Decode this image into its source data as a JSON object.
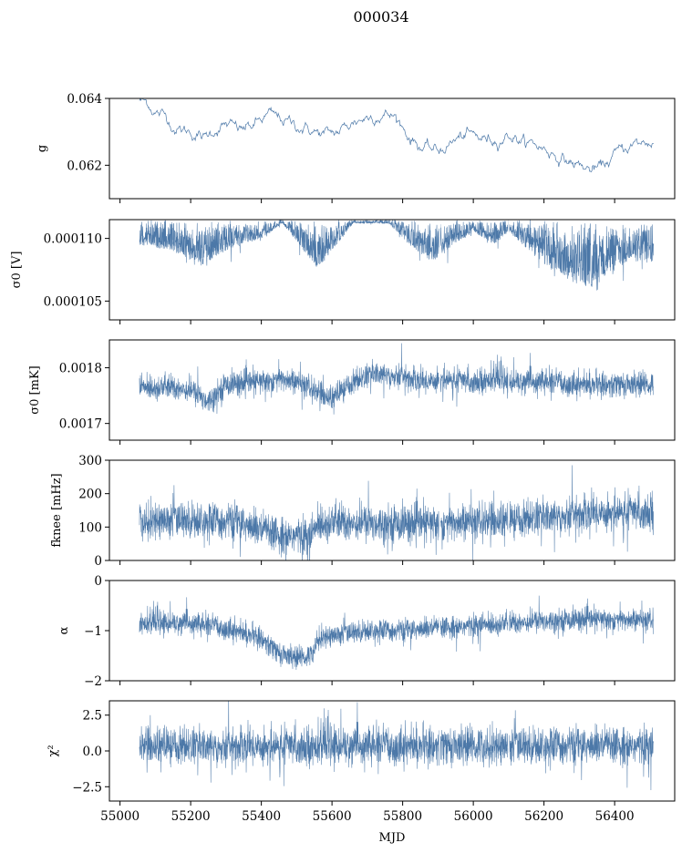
{
  "title": "000034",
  "xlabel": "MJD",
  "line_color": "#4c78a8",
  "x_ticks": [
    55000,
    55200,
    55400,
    55600,
    55800,
    56000,
    56200,
    56400
  ],
  "x_range": [
    54970,
    56570
  ],
  "data_x_range": [
    55055,
    56510
  ],
  "chart_data": [
    {
      "type": "line",
      "ylabel": "g",
      "ylim": [
        0.061,
        0.064
      ],
      "y_ticks": [
        0.062,
        0.064
      ],
      "y_tick_labels": [
        "0.062",
        "0.064"
      ],
      "style": "thin-line",
      "mean_curve": [
        [
          55055,
          0.06395
        ],
        [
          55080,
          0.06385
        ],
        [
          55100,
          0.0636
        ],
        [
          55130,
          0.06345
        ],
        [
          55160,
          0.0631
        ],
        [
          55200,
          0.063
        ],
        [
          55240,
          0.0628
        ],
        [
          55270,
          0.0631
        ],
        [
          55300,
          0.0632
        ],
        [
          55340,
          0.06305
        ],
        [
          55380,
          0.0632
        ],
        [
          55420,
          0.0635
        ],
        [
          55460,
          0.06335
        ],
        [
          55500,
          0.0632
        ],
        [
          55540,
          0.06305
        ],
        [
          55580,
          0.0629
        ],
        [
          55620,
          0.063
        ],
        [
          55660,
          0.0633
        ],
        [
          55700,
          0.06345
        ],
        [
          55740,
          0.06355
        ],
        [
          55780,
          0.06345
        ],
        [
          55820,
          0.06285
        ],
        [
          55860,
          0.0625
        ],
        [
          55900,
          0.0624
        ],
        [
          55940,
          0.0627
        ],
        [
          55980,
          0.0629
        ],
        [
          56020,
          0.0628
        ],
        [
          56060,
          0.06275
        ],
        [
          56100,
          0.06295
        ],
        [
          56140,
          0.0627
        ],
        [
          56180,
          0.0626
        ],
        [
          56220,
          0.0624
        ],
        [
          56260,
          0.06215
        ],
        [
          56300,
          0.062
        ],
        [
          56330,
          0.06185
        ],
        [
          56360,
          0.0619
        ],
        [
          56400,
          0.0623
        ],
        [
          56440,
          0.0626
        ],
        [
          56480,
          0.06265
        ],
        [
          56510,
          0.0627
        ]
      ],
      "spread": 0.0
    },
    {
      "type": "line",
      "ylabel": "σ0 [V]",
      "ylim": [
        0.0001035,
        0.0001115
      ],
      "y_ticks": [
        0.000105,
        0.00011
      ],
      "y_tick_labels": [
        "0.000105",
        "0.000110"
      ],
      "style": "dense-noise-downward",
      "upper_envelope": 0.0001115,
      "lower_envelope": [
        [
          55055,
          0.0001095
        ],
        [
          55150,
          0.000109
        ],
        [
          55230,
          0.0001078
        ],
        [
          55300,
          0.000109
        ],
        [
          55400,
          0.00011
        ],
        [
          55460,
          0.0001112
        ],
        [
          55520,
          0.000109
        ],
        [
          55560,
          0.0001075
        ],
        [
          55600,
          0.000109
        ],
        [
          55660,
          0.0001112
        ],
        [
          55760,
          0.0001112
        ],
        [
          55820,
          0.0001095
        ],
        [
          55880,
          0.000108
        ],
        [
          55930,
          0.0001092
        ],
        [
          56000,
          0.0001105
        ],
        [
          56060,
          0.0001095
        ],
        [
          56100,
          0.0001105
        ],
        [
          56160,
          0.000109
        ],
        [
          56220,
          0.0001075
        ],
        [
          56280,
          0.0001065
        ],
        [
          56330,
          0.000106
        ],
        [
          56380,
          0.000107
        ],
        [
          56440,
          0.0001082
        ],
        [
          56510,
          0.000108
        ]
      ]
    },
    {
      "type": "line",
      "ylabel": "σ0 [mK]",
      "ylim": [
        0.00167,
        0.00185
      ],
      "y_ticks": [
        0.0017,
        0.0018
      ],
      "y_tick_labels": [
        "0.0017",
        "0.0018"
      ],
      "style": "dense-noise-band",
      "center_curve": [
        [
          55055,
          0.001765
        ],
        [
          55150,
          0.001765
        ],
        [
          55200,
          0.00176
        ],
        [
          55250,
          0.00174
        ],
        [
          55300,
          0.00177
        ],
        [
          55400,
          0.001775
        ],
        [
          55460,
          0.00178
        ],
        [
          55520,
          0.00177
        ],
        [
          55560,
          0.001755
        ],
        [
          55600,
          0.001745
        ],
        [
          55660,
          0.001775
        ],
        [
          55720,
          0.00179
        ],
        [
          55800,
          0.001785
        ],
        [
          55860,
          0.001775
        ],
        [
          55910,
          0.00178
        ],
        [
          56000,
          0.001775
        ],
        [
          56060,
          0.00178
        ],
        [
          56100,
          0.001775
        ],
        [
          56200,
          0.001775
        ],
        [
          56300,
          0.00177
        ],
        [
          56400,
          0.00177
        ],
        [
          56510,
          0.00177
        ]
      ],
      "half_width": 2.2e-05
    },
    {
      "type": "line",
      "ylabel": "fknee [mHz]",
      "ylim": [
        0,
        300
      ],
      "y_ticks": [
        0,
        100,
        200,
        300
      ],
      "y_tick_labels": [
        "0",
        "100",
        "200",
        "300"
      ],
      "style": "dense-noise-band",
      "center_curve": [
        [
          55055,
          120
        ],
        [
          55200,
          120
        ],
        [
          55330,
          115
        ],
        [
          55400,
          90
        ],
        [
          55450,
          75
        ],
        [
          55500,
          75
        ],
        [
          55540,
          70
        ],
        [
          55560,
          110
        ],
        [
          55600,
          115
        ],
        [
          55800,
          110
        ],
        [
          55900,
          110
        ],
        [
          56000,
          115
        ],
        [
          56100,
          120
        ],
        [
          56200,
          130
        ],
        [
          56300,
          140
        ],
        [
          56400,
          145
        ],
        [
          56510,
          145
        ]
      ],
      "half_width": 55
    },
    {
      "type": "line",
      "ylabel": "α",
      "ylim": [
        -2,
        0
      ],
      "y_ticks": [
        -2,
        -1,
        0
      ],
      "y_tick_labels": [
        "−2",
        "−1",
        "0"
      ],
      "style": "dense-noise-band",
      "center_curve": [
        [
          55055,
          -0.85
        ],
        [
          55200,
          -0.85
        ],
        [
          55300,
          -0.95
        ],
        [
          55350,
          -1.05
        ],
        [
          55400,
          -1.15
        ],
        [
          55450,
          -1.45
        ],
        [
          55500,
          -1.55
        ],
        [
          55540,
          -1.5
        ],
        [
          55560,
          -1.15
        ],
        [
          55600,
          -1.1
        ],
        [
          55700,
          -1.0
        ],
        [
          55800,
          -1.0
        ],
        [
          55900,
          -0.95
        ],
        [
          56000,
          -0.9
        ],
        [
          56100,
          -0.85
        ],
        [
          56200,
          -0.8
        ],
        [
          56300,
          -0.78
        ],
        [
          56400,
          -0.78
        ],
        [
          56510,
          -0.8
        ]
      ],
      "half_width": 0.22
    },
    {
      "type": "line",
      "ylabel": "χ²",
      "ylim": [
        -3.5,
        3.5
      ],
      "y_ticks": [
        -2.5,
        0.0,
        2.5
      ],
      "y_tick_labels": [
        "−2.5",
        "0.0",
        "2.5"
      ],
      "style": "dense-noise-band",
      "center_curve": [
        [
          55055,
          0.35
        ],
        [
          56510,
          0.35
        ]
      ],
      "half_width": 1.3
    }
  ]
}
